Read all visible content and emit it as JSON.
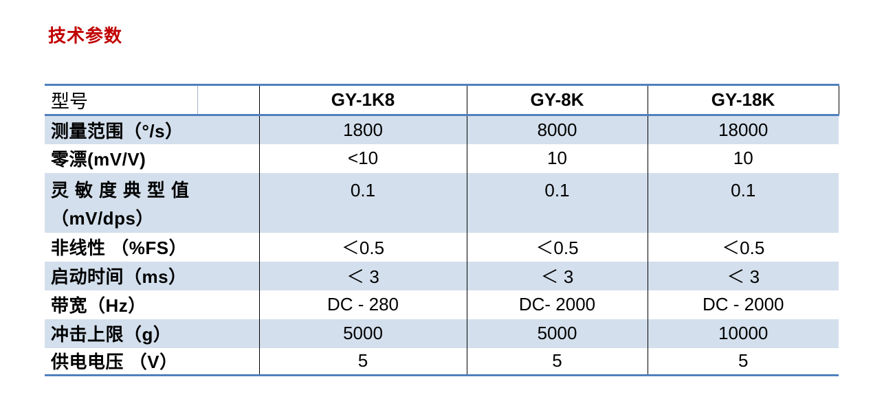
{
  "page": {
    "title": "技术参数"
  },
  "table": {
    "header": {
      "label": "型号",
      "models": [
        "GY-1K8",
        "GY-8K",
        "GY-18K"
      ]
    },
    "rows": [
      {
        "label": "测量范围（°/s）",
        "values": [
          "1800",
          "8000",
          "18000"
        ]
      },
      {
        "label": "零漂(mV/V)",
        "values": [
          "<10",
          "10",
          "10"
        ]
      },
      {
        "label": "灵敏度典型值",
        "label_line2": "（mV/dps）",
        "values": [
          "0.1",
          "0.1",
          "0.1"
        ]
      },
      {
        "label": "非线性 （%FS）",
        "values": [
          "＜0.5",
          "＜0.5",
          "＜0.5"
        ]
      },
      {
        "label": "启动时间（ms）",
        "values": [
          "＜ 3",
          "＜ 3",
          "＜ 3"
        ]
      },
      {
        "label": "带宽（Hz）",
        "values": [
          "DC - 280",
          "DC- 2000",
          "DC - 2000"
        ]
      },
      {
        "label": "冲击上限（g）",
        "values": [
          "5000",
          "5000",
          "10000"
        ]
      },
      {
        "label": "供电电压 （V）",
        "values": [
          "5",
          "5",
          "5"
        ]
      }
    ],
    "colors": {
      "accent_border_blue": "#4f81bd",
      "row_alt_blue": "#d3dfec",
      "title_red": "#c00000",
      "grid_line_black": "#000000"
    }
  }
}
